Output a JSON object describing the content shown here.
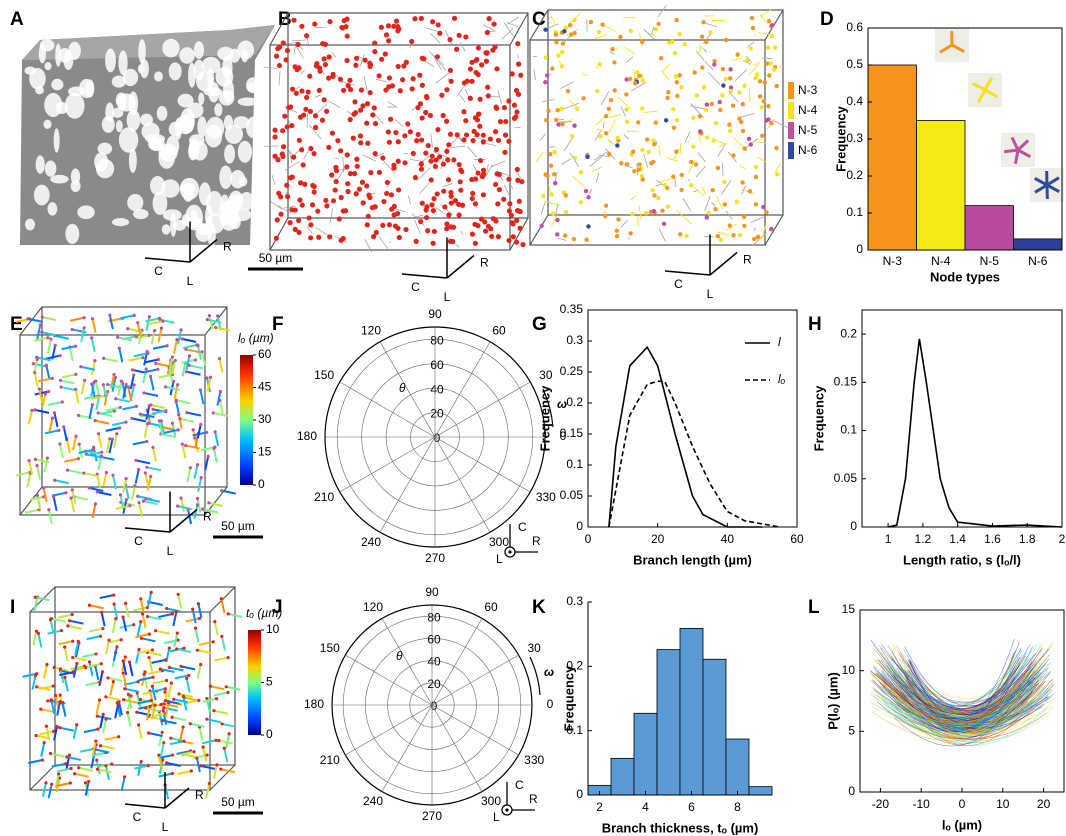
{
  "panel_labels": [
    "A",
    "B",
    "C",
    "D",
    "E",
    "F",
    "G",
    "H",
    "I",
    "J",
    "K",
    "L"
  ],
  "images": {
    "A": {
      "axes": [
        "C",
        "R",
        "L"
      ]
    },
    "B": {
      "axes": [
        "C",
        "R",
        "L"
      ],
      "scale_bar": "50 µm"
    },
    "C": {
      "axes": [
        "C",
        "R",
        "L"
      ],
      "legend": [
        {
          "name": "N-3",
          "color": "#f7941d"
        },
        {
          "name": "N-4",
          "color": "#f2e31a"
        },
        {
          "name": "N-5",
          "color": "#c04fa0"
        },
        {
          "name": "N-6",
          "color": "#2f4b9c"
        }
      ]
    },
    "E": {
      "axes": [
        "C",
        "R",
        "L"
      ],
      "scale_bar": "50 µm",
      "colorbar": {
        "title": "lₒ (µm)",
        "lim": [
          0,
          60
        ],
        "ticks": [
          0,
          15,
          30,
          45,
          60
        ]
      }
    },
    "I": {
      "axes": [
        "C",
        "R",
        "L"
      ],
      "scale_bar": "50 µm",
      "colorbar": {
        "title": "tₒ (µm)",
        "lim": [
          0,
          10
        ],
        "ticks": [
          0,
          5,
          10
        ]
      }
    }
  },
  "chart_data": [
    {
      "type": "bar",
      "categories": [
        "N-3",
        "N-4",
        "N-5",
        "N-6"
      ],
      "values": [
        0.5,
        0.35,
        0.12,
        0.03
      ],
      "colors": [
        "#f7941d",
        "#f5ea14",
        "#b84b9e",
        "#2e3f9a"
      ],
      "ylim": [
        0,
        0.6
      ],
      "yticks": [
        0,
        0.1,
        0.2,
        0.3,
        0.4,
        0.5,
        0.6
      ],
      "xlabel": "Node types",
      "ylabel": "Frequency"
    },
    {
      "type": "polar",
      "angle_ticks": [
        0,
        30,
        60,
        90,
        120,
        150,
        180,
        210,
        240,
        270,
        300,
        330
      ],
      "rlim": [
        0,
        90
      ],
      "rticks": [
        0,
        20,
        40,
        60,
        80
      ],
      "theta_label": "θ",
      "omega_label": "ω",
      "axes": [
        "C",
        "R",
        "L"
      ]
    },
    {
      "type": "line",
      "xlim": [
        0,
        60
      ],
      "xticks": [
        0,
        20,
        40,
        60
      ],
      "ylim": [
        0,
        0.35
      ],
      "yticks": [
        0,
        0.05,
        0.1,
        0.15,
        0.2,
        0.25,
        0.3,
        0.35
      ],
      "xlabel": "Branch length (µm)",
      "ylabel": "Frequency",
      "legend": "upper right",
      "series": [
        {
          "name": "l",
          "color": "#000000",
          "style": "solid",
          "x": [
            6,
            8,
            12,
            17,
            20,
            25,
            30,
            33,
            40,
            50
          ],
          "values": [
            0,
            0.13,
            0.26,
            0.29,
            0.26,
            0.15,
            0.05,
            0.02,
            0,
            0
          ]
        },
        {
          "name": "lₒ",
          "color": "#000000",
          "style": "dashed",
          "x": [
            6,
            8,
            12,
            17,
            20,
            22,
            25,
            30,
            35,
            40,
            45,
            50,
            55
          ],
          "values": [
            0,
            0.06,
            0.18,
            0.23,
            0.235,
            0.235,
            0.2,
            0.13,
            0.07,
            0.025,
            0.01,
            0.005,
            0
          ]
        }
      ]
    },
    {
      "type": "line",
      "xlim": [
        0.85,
        2
      ],
      "xticks": [
        1,
        1.2,
        1.4,
        1.6,
        1.8,
        2
      ],
      "ylim": [
        0,
        0.225
      ],
      "yticks": [
        0,
        0.05,
        0.1,
        0.15,
        0.2
      ],
      "xlabel": "Length ratio, s (lₒ/l)",
      "ylabel": "Frequency",
      "color": "#000000",
      "x": [
        1,
        1.05,
        1.1,
        1.15,
        1.18,
        1.22,
        1.26,
        1.3,
        1.35,
        1.4,
        1.5,
        1.6,
        1.8,
        1.9,
        2
      ],
      "values": [
        0,
        0.002,
        0.05,
        0.15,
        0.195,
        0.15,
        0.1,
        0.05,
        0.02,
        0.005,
        0.003,
        0.001,
        0.002,
        0.001,
        0
      ]
    },
    {
      "type": "polar",
      "angle_ticks": [
        0,
        30,
        60,
        90,
        120,
        150,
        180,
        210,
        240,
        270,
        300,
        330
      ],
      "rlim": [
        0,
        90
      ],
      "rticks": [
        0,
        20,
        40,
        60,
        80
      ],
      "theta_label": "θ",
      "omega_label": "ω",
      "axes": [
        "C",
        "R",
        "L"
      ]
    },
    {
      "type": "histogram",
      "bins": [
        1.5,
        2.5,
        3.5,
        4.5,
        5.5,
        6.5,
        7.5,
        8.5,
        9.5
      ],
      "values": [
        0.015,
        0.057,
        0.127,
        0.226,
        0.259,
        0.211,
        0.087,
        0.013
      ],
      "color": "#5b9bd5",
      "xlim": [
        1.5,
        9.5
      ],
      "xticks": [
        2,
        4,
        6,
        8
      ],
      "ylim": [
        0,
        0.3
      ],
      "yticks": [
        0,
        0.1,
        0.2,
        0.3
      ],
      "xlabel": "Branch thickness, tₒ (µm)",
      "ylabel": "Frequency"
    },
    {
      "type": "scatter",
      "xlim": [
        -25,
        25
      ],
      "xticks": [
        -20,
        -10,
        0,
        10,
        20
      ],
      "ylim": [
        0,
        15
      ],
      "yticks": [
        0,
        5,
        10,
        15
      ],
      "xlabel": "lₒ (µm)",
      "ylabel": "P(lₒ) (µm)"
    }
  ]
}
